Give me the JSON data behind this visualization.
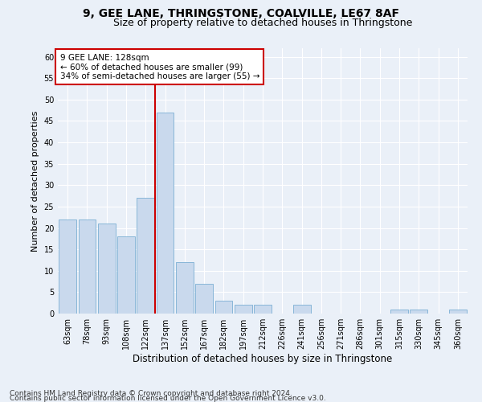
{
  "title1": "9, GEE LANE, THRINGSTONE, COALVILLE, LE67 8AF",
  "title2": "Size of property relative to detached houses in Thringstone",
  "xlabel": "Distribution of detached houses by size in Thringstone",
  "ylabel": "Number of detached properties",
  "categories": [
    "63sqm",
    "78sqm",
    "93sqm",
    "108sqm",
    "122sqm",
    "137sqm",
    "152sqm",
    "167sqm",
    "182sqm",
    "197sqm",
    "212sqm",
    "226sqm",
    "241sqm",
    "256sqm",
    "271sqm",
    "286sqm",
    "301sqm",
    "315sqm",
    "330sqm",
    "345sqm",
    "360sqm"
  ],
  "values": [
    22,
    22,
    21,
    18,
    27,
    47,
    12,
    7,
    3,
    2,
    2,
    0,
    2,
    0,
    0,
    0,
    0,
    1,
    1,
    0,
    1
  ],
  "bar_color": "#c9d9ed",
  "bar_edge_color": "#7bafd4",
  "red_line_x": 4.5,
  "annotation_title": "9 GEE LANE: 128sqm",
  "annotation_line1": "← 60% of detached houses are smaller (99)",
  "annotation_line2": "34% of semi-detached houses are larger (55) →",
  "annotation_box_color": "#ffffff",
  "annotation_box_edge_color": "#cc0000",
  "ylim": [
    0,
    62
  ],
  "yticks": [
    0,
    5,
    10,
    15,
    20,
    25,
    30,
    35,
    40,
    45,
    50,
    55,
    60
  ],
  "footer1": "Contains HM Land Registry data © Crown copyright and database right 2024.",
  "footer2": "Contains public sector information licensed under the Open Government Licence v3.0.",
  "bg_color": "#eaf0f8",
  "plot_bg_color": "#eaf0f8",
  "grid_color": "#ffffff",
  "title1_fontsize": 10,
  "title2_fontsize": 9,
  "xlabel_fontsize": 8.5,
  "ylabel_fontsize": 8,
  "tick_fontsize": 7,
  "footer_fontsize": 6.5,
  "ann_fontsize": 7.5
}
